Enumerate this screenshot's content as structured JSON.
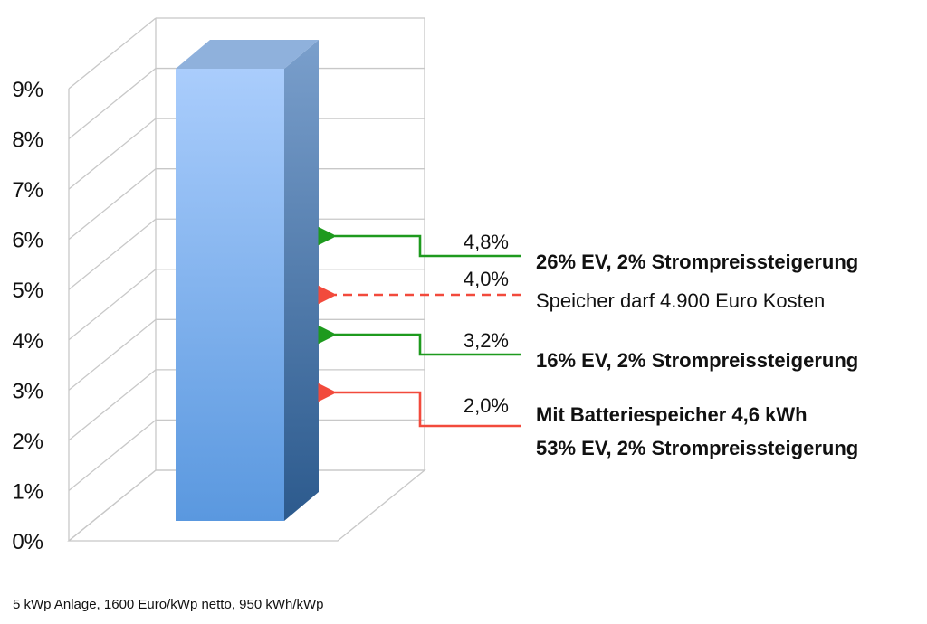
{
  "chart_data": {
    "type": "bar",
    "yticks": [
      "0%",
      "1%",
      "2%",
      "3%",
      "4%",
      "5%",
      "6%",
      "7%",
      "8%",
      "9%"
    ],
    "ylim": [
      0,
      9
    ],
    "grid": true,
    "values": [
      9.0
    ],
    "annotations": [
      {
        "value": 4.8,
        "value_label": "4,8%",
        "lines": [
          "26% EV, 2% Strompreissteigerung"
        ],
        "bold": true,
        "color": "#1e9a1e",
        "dashed": false
      },
      {
        "value": 4.0,
        "value_label": "4,0%",
        "lines": [
          "Speicher darf 4.900 Euro Kosten"
        ],
        "bold": false,
        "color": "#f24a3c",
        "dashed": true
      },
      {
        "value": 3.2,
        "value_label": "3,2%",
        "lines": [
          "16% EV, 2% Strompreissteigerung"
        ],
        "bold": true,
        "color": "#1e9a1e",
        "dashed": false
      },
      {
        "value": 2.0,
        "value_label": "2,0%",
        "lines": [
          "Mit Batteriespeicher 4,6 kWh",
          "53% EV, 2% Strompreissteigerung"
        ],
        "bold": true,
        "color": "#f24a3c",
        "dashed": false
      }
    ],
    "footnote": "5 kWp Anlage, 1600 Euro/kWp netto, 950 kWh/kWp"
  },
  "colors": {
    "bar_front_top": "#aacdfc",
    "bar_front_bottom": "#5a98df",
    "bar_side_top": "#7a9fcc",
    "bar_side_bottom": "#2c5a8d",
    "bar_top": "#8fb1dc",
    "grid": "#c8c8c8"
  }
}
